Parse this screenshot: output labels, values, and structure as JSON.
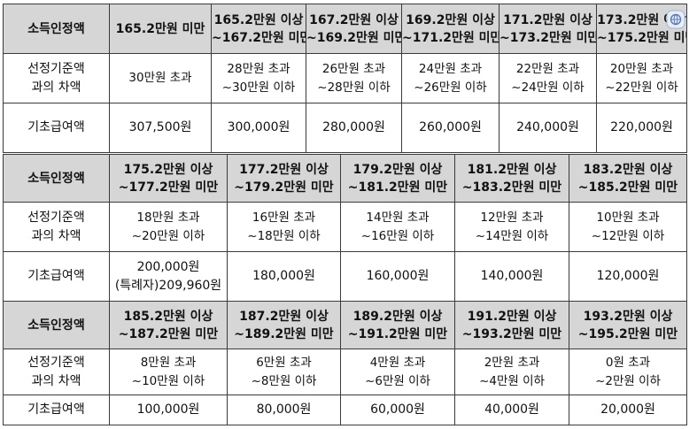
{
  "blocks": [
    {
      "labels": {
        "income": "소득인정액",
        "diff": "선정기준액\n과의 차액",
        "benefit": "기초급여액"
      },
      "headers": [
        "165.2만원 미만",
        "165.2만원 이상\n~167.2만원 미만",
        "167.2만원 이상\n~169.2만원 미만",
        "169.2만원 이상\n~171.2만원 미만",
        "171.2만원 이상\n~173.2만원 미만",
        "173.2만원 이상\n~175.2만원 미만"
      ],
      "diffs": [
        "30만원 초과",
        "28만원 초과\n~30만원 이하",
        "26만원 초과\n~28만원 이하",
        "24만원 초과\n~26만원 이하",
        "22만원 초과\n~24만원 이하",
        "20만원 초과\n~22만원 이하"
      ],
      "benefits": [
        "307,500원",
        "300,000원",
        "280,000원",
        "260,000원",
        "240,000원",
        "220,000원"
      ]
    },
    {
      "labels": {
        "income": "소득인정액",
        "diff": "선정기준액\n과의 차액",
        "benefit": "기초급여액"
      },
      "headers": [
        "175.2만원 이상\n~177.2만원 미만",
        "177.2만원 이상\n~179.2만원 미만",
        "179.2만원 이상\n~181.2만원 미만",
        "181.2만원 이상\n~183.2만원 미만",
        "183.2만원 이상\n~185.2만원 미만"
      ],
      "diffs": [
        "18만원 초과\n~20만원 이하",
        "16만원 초과\n~18만원 이하",
        "14만원 초과\n~16만원 이하",
        "12만원 초과\n~14만원 이하",
        "10만원 초과\n~12만원 이하"
      ],
      "benefits": [
        "200,000원\n(특례자)209,960원",
        "180,000원",
        "160,000원",
        "140,000원",
        "120,000원"
      ]
    },
    {
      "labels": {
        "income": "소득인정액",
        "diff": "선정기준액\n과의 차액",
        "benefit": "기초급여액"
      },
      "headers": [
        "185.2만원 이상\n~187.2만원 미만",
        "187.2만원 이상\n~189.2만원 미만",
        "189.2만원 이상\n~191.2만원 미만",
        "191.2만원 이상\n~193.2만원 미만",
        "193.2만원 이상\n~195.2만원 미만"
      ],
      "diffs": [
        "8만원 초과\n~10만원 이하",
        "6만원 초과\n~8만원 이하",
        "4만원 초과\n~6만원 이하",
        "2만원 초과\n~4만원 이하",
        "0원 초과\n~2만원 이하"
      ],
      "benefits": [
        "100,000원",
        "80,000원",
        "60,000원",
        "40,000원",
        "20,000원"
      ]
    }
  ],
  "icon": "translate-icon",
  "colors": {
    "header_bg": "#d6d6d6",
    "border": "#3a3a3a"
  }
}
